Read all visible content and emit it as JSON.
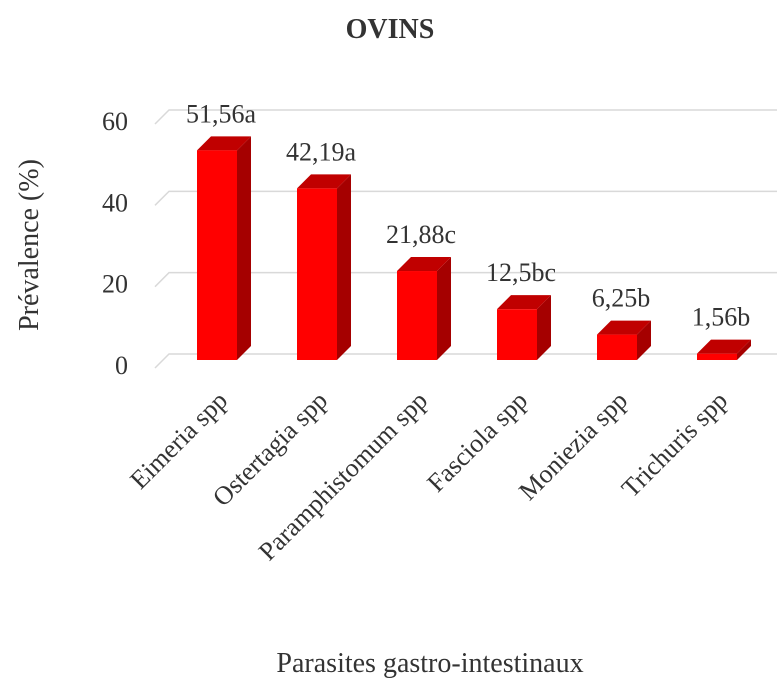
{
  "chart_data": {
    "type": "bar",
    "title": "OVINS",
    "y_label": "Prévalence (%)",
    "x_label": "Parasites gastro-intestinaux",
    "categories": [
      "Eimeria spp",
      "Ostertagia spp",
      "Paramphistomum spp",
      "Fasciola spp",
      "Moniezia spp",
      "Trichuris spp"
    ],
    "values": [
      51.56,
      42.19,
      21.88,
      12.5,
      6.25,
      1.56
    ],
    "value_labels": [
      "51,56a",
      "42,19a",
      "21,88c",
      "12,5bc",
      "6,25b",
      "1,56b"
    ],
    "color": "#ff0000",
    "ylim": [
      0,
      60
    ],
    "yticks": [
      0,
      20,
      40,
      60
    ],
    "grid": true
  }
}
